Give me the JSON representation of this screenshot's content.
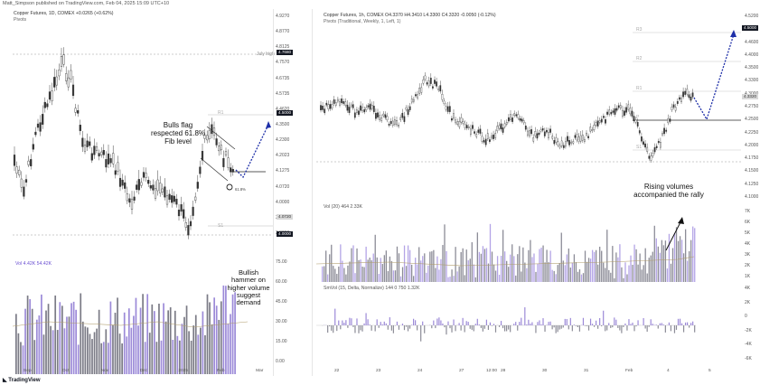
{
  "header": {
    "text": "Matt_Simpson published on TradingView.com, Feb 04, 2025 15:09 UTC+10"
  },
  "left": {
    "title": "Copper Futures, 1D, COMEX  +0.0265 (+0.62%)",
    "indicator": "Pivots",
    "vol_label": "Vol  4.42K  54.42K",
    "price_ticks": [
      "4.9270",
      "4.8770",
      "4.8125",
      "4.7570",
      "4.6735",
      "4.5735",
      "4.4620",
      "4.3500",
      "4.2300",
      "4.2023",
      "4.1275",
      "4.0720",
      "4.0000",
      "3.9445",
      "3.8200"
    ],
    "vol_ticks": [
      "75.00",
      "60.00",
      "45.00",
      "30.00",
      "15.00",
      "0.00"
    ],
    "time_ticks": [
      "Sep",
      "Oct",
      "Nov",
      "Dec",
      "2025",
      "Feb",
      "Mar"
    ],
    "july_high": "July high",
    "r1": "R1",
    "s1": "S1",
    "fib": "61.8%",
    "tags": {
      "july_high": "4.7680",
      "r1": "4.5000",
      "last": "4.2870",
      "s1_tag": "4.0720",
      "black2": "4.0000"
    },
    "notes": {
      "bulls_flag": "Bulls flag\nrespected 61.8%\nFib level",
      "hammer": "Bullish\nhammer on\nhigher volume\nsuggest\ndemand"
    }
  },
  "right": {
    "title": "Copper Futures, 1h, COMEX  O4.3370  H4.3410  L4.3300  C4.3320  -0.0050 (-0.12%)",
    "indicator": "Pivots (Traditional, Weekly, 1, Left, 1)",
    "pivots": [
      "R3",
      "R2",
      "R1",
      "P",
      "S1"
    ],
    "price_ticks": [
      "4.5200",
      "4.5000",
      "4.4600",
      "4.4000",
      "4.3500",
      "4.3300",
      "4.3000",
      "4.2750",
      "4.2500",
      "4.2250",
      "4.2000",
      "4.1750",
      "4.1500",
      "4.1250",
      "4.1000"
    ],
    "vol_label": "Vol (20)  464  2.33K",
    "vol_ticks": [
      "7K",
      "6K",
      "5K",
      "4K",
      "3K",
      "2K",
      "1K"
    ],
    "cvd_label": "SmVol (15, Delta, Normalize)  144  0  750  1.32K",
    "cvd_ticks": [
      "4K",
      "2K",
      "0",
      "-2K",
      "-4K",
      "-6K"
    ],
    "time_ticks": [
      "22",
      "23",
      "24",
      "27",
      "28",
      "30",
      "31",
      "Feb",
      "4",
      "5"
    ],
    "time_tick_extra": "12:00",
    "tags": {
      "r3": "4.5000",
      "last": "4.3320"
    },
    "notes": {
      "rising": "Rising volumes\naccompanied the rally"
    }
  },
  "footer": {
    "logo": "TradingView"
  },
  "colors": {
    "bull": "#2a2a2a",
    "bear": "#555555",
    "volume_bar": "#8f8fa0",
    "volume_up": "#9c8ad8",
    "arrow": "#1e2fa8",
    "pivot": "#b0b0b0"
  }
}
